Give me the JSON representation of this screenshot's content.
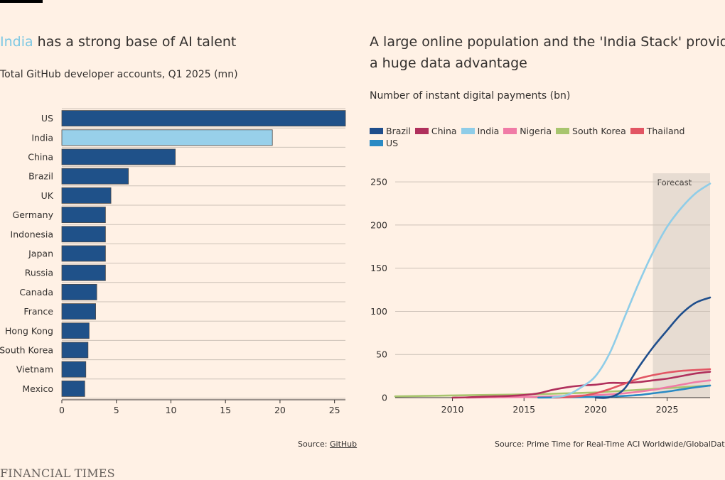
{
  "left": {
    "title_highlight": "India",
    "title_rest": " has a strong base of AI talent",
    "subtitle": "Total GitHub developer accounts, Q1 2025 (mn)",
    "source_prefix": "Source: ",
    "source_link": "GitHub"
  },
  "right": {
    "title_line1": "A large online population and the 'India Stack' provide",
    "title_line2": "a huge data advantage",
    "subtitle": "Number of instant digital payments (bn)",
    "source": "Source: Prime Time for Real-Time ACI Worldwide/GlobalData",
    "forecast_label": "Forecast"
  },
  "brand": "FINANCIAL TIMES",
  "colors": {
    "background": "#fff1e5",
    "bar_default": "#1f5189",
    "bar_highlight": "#98d0ea",
    "forecast_band": "#e7dcd2",
    "grid": "#ccc1b7"
  },
  "chart_data": [
    {
      "type": "bar",
      "orientation": "horizontal",
      "title": "India has a strong base of AI talent",
      "subtitle": "Total GitHub developer accounts, Q1 2025 (mn)",
      "categories": [
        "US",
        "India",
        "China",
        "Brazil",
        "UK",
        "Germany",
        "Indonesia",
        "Japan",
        "Russia",
        "Canada",
        "France",
        "Hong Kong",
        "South Korea",
        "Vietnam",
        "Mexico"
      ],
      "values": [
        26,
        19.3,
        10.4,
        6.1,
        4.5,
        4.0,
        4.0,
        4.0,
        4.0,
        3.2,
        3.1,
        2.5,
        2.4,
        2.2,
        2.1
      ],
      "highlight": "India",
      "xlim": [
        0,
        26
      ],
      "xticks": [
        0,
        5,
        10,
        15,
        20,
        25
      ],
      "grid": true,
      "source": "Source: GitHub"
    },
    {
      "type": "line",
      "title": "A large online population and the 'India Stack' provide a huge data advantage",
      "subtitle": "Number of instant digital payments (bn)",
      "xlim": [
        2006,
        2028
      ],
      "ylim": [
        0,
        260
      ],
      "xticks": [
        2010,
        2015,
        2020,
        2025
      ],
      "yticks": [
        0,
        50,
        100,
        150,
        200,
        250
      ],
      "grid": true,
      "legend_position": "top-left",
      "forecast_range": [
        2024,
        2028
      ],
      "series": [
        {
          "name": "Brazil",
          "color": "#1f4e8c",
          "points": [
            [
              2020,
              0
            ],
            [
              2021,
              0.5
            ],
            [
              2022,
              10
            ],
            [
              2023,
              35
            ],
            [
              2024,
              58
            ],
            [
              2025,
              78
            ],
            [
              2026,
              97
            ],
            [
              2027,
              110
            ],
            [
              2028,
              116
            ]
          ]
        },
        {
          "name": "China",
          "color": "#b0305c",
          "points": [
            [
              2010,
              0
            ],
            [
              2011,
              0.3
            ],
            [
              2012,
              1
            ],
            [
              2013,
              1.5
            ],
            [
              2014,
              2
            ],
            [
              2015,
              3
            ],
            [
              2016,
              5
            ],
            [
              2017,
              9
            ],
            [
              2018,
              12
            ],
            [
              2019,
              14
            ],
            [
              2020,
              15
            ],
            [
              2021,
              17
            ],
            [
              2022,
              17
            ],
            [
              2023,
              18
            ],
            [
              2024,
              20
            ],
            [
              2025,
              22
            ],
            [
              2026,
              25
            ],
            [
              2027,
              28
            ],
            [
              2028,
              30
            ]
          ]
        },
        {
          "name": "India",
          "color": "#8fcde8",
          "points": [
            [
              2017,
              0.3
            ],
            [
              2018,
              3
            ],
            [
              2019,
              12
            ],
            [
              2020,
              25
            ],
            [
              2021,
              52
            ],
            [
              2022,
              92
            ],
            [
              2023,
              132
            ],
            [
              2024,
              168
            ],
            [
              2025,
              198
            ],
            [
              2026,
              220
            ],
            [
              2027,
              237
            ],
            [
              2028,
              248
            ]
          ]
        },
        {
          "name": "Nigeria",
          "color": "#f07ba6",
          "points": [
            [
              2011,
              0
            ],
            [
              2014,
              0.5
            ],
            [
              2016,
              1
            ],
            [
              2018,
              2
            ],
            [
              2020,
              3
            ],
            [
              2022,
              5
            ],
            [
              2024,
              9
            ],
            [
              2025,
              12
            ],
            [
              2026,
              15
            ],
            [
              2027,
              18
            ],
            [
              2028,
              20
            ]
          ]
        },
        {
          "name": "South Korea",
          "color": "#a8c56e",
          "points": [
            [
              2006,
              1.5
            ],
            [
              2008,
              2
            ],
            [
              2010,
              2.5
            ],
            [
              2012,
              3
            ],
            [
              2014,
              3.5
            ],
            [
              2016,
              4
            ],
            [
              2018,
              5
            ],
            [
              2020,
              6
            ],
            [
              2022,
              8
            ],
            [
              2024,
              10
            ],
            [
              2026,
              12
            ],
            [
              2028,
              14
            ]
          ]
        },
        {
          "name": "Thailand",
          "color": "#e25563",
          "points": [
            [
              2017,
              0
            ],
            [
              2018,
              0.5
            ],
            [
              2019,
              2
            ],
            [
              2020,
              5
            ],
            [
              2021,
              10
            ],
            [
              2022,
              16
            ],
            [
              2023,
              22
            ],
            [
              2024,
              26
            ],
            [
              2025,
              29
            ],
            [
              2026,
              31
            ],
            [
              2027,
              32
            ],
            [
              2028,
              33
            ]
          ]
        },
        {
          "name": "US",
          "color": "#2a8ac4",
          "points": [
            [
              2016,
              0
            ],
            [
              2018,
              0.3
            ],
            [
              2020,
              0.8
            ],
            [
              2021,
              1
            ],
            [
              2022,
              2
            ],
            [
              2023,
              3
            ],
            [
              2024,
              5
            ],
            [
              2025,
              7
            ],
            [
              2026,
              9.5
            ],
            [
              2027,
              12
            ],
            [
              2028,
              14
            ]
          ]
        }
      ],
      "source": "Source: Prime Time for Real-Time ACI Worldwide/GlobalData"
    }
  ]
}
